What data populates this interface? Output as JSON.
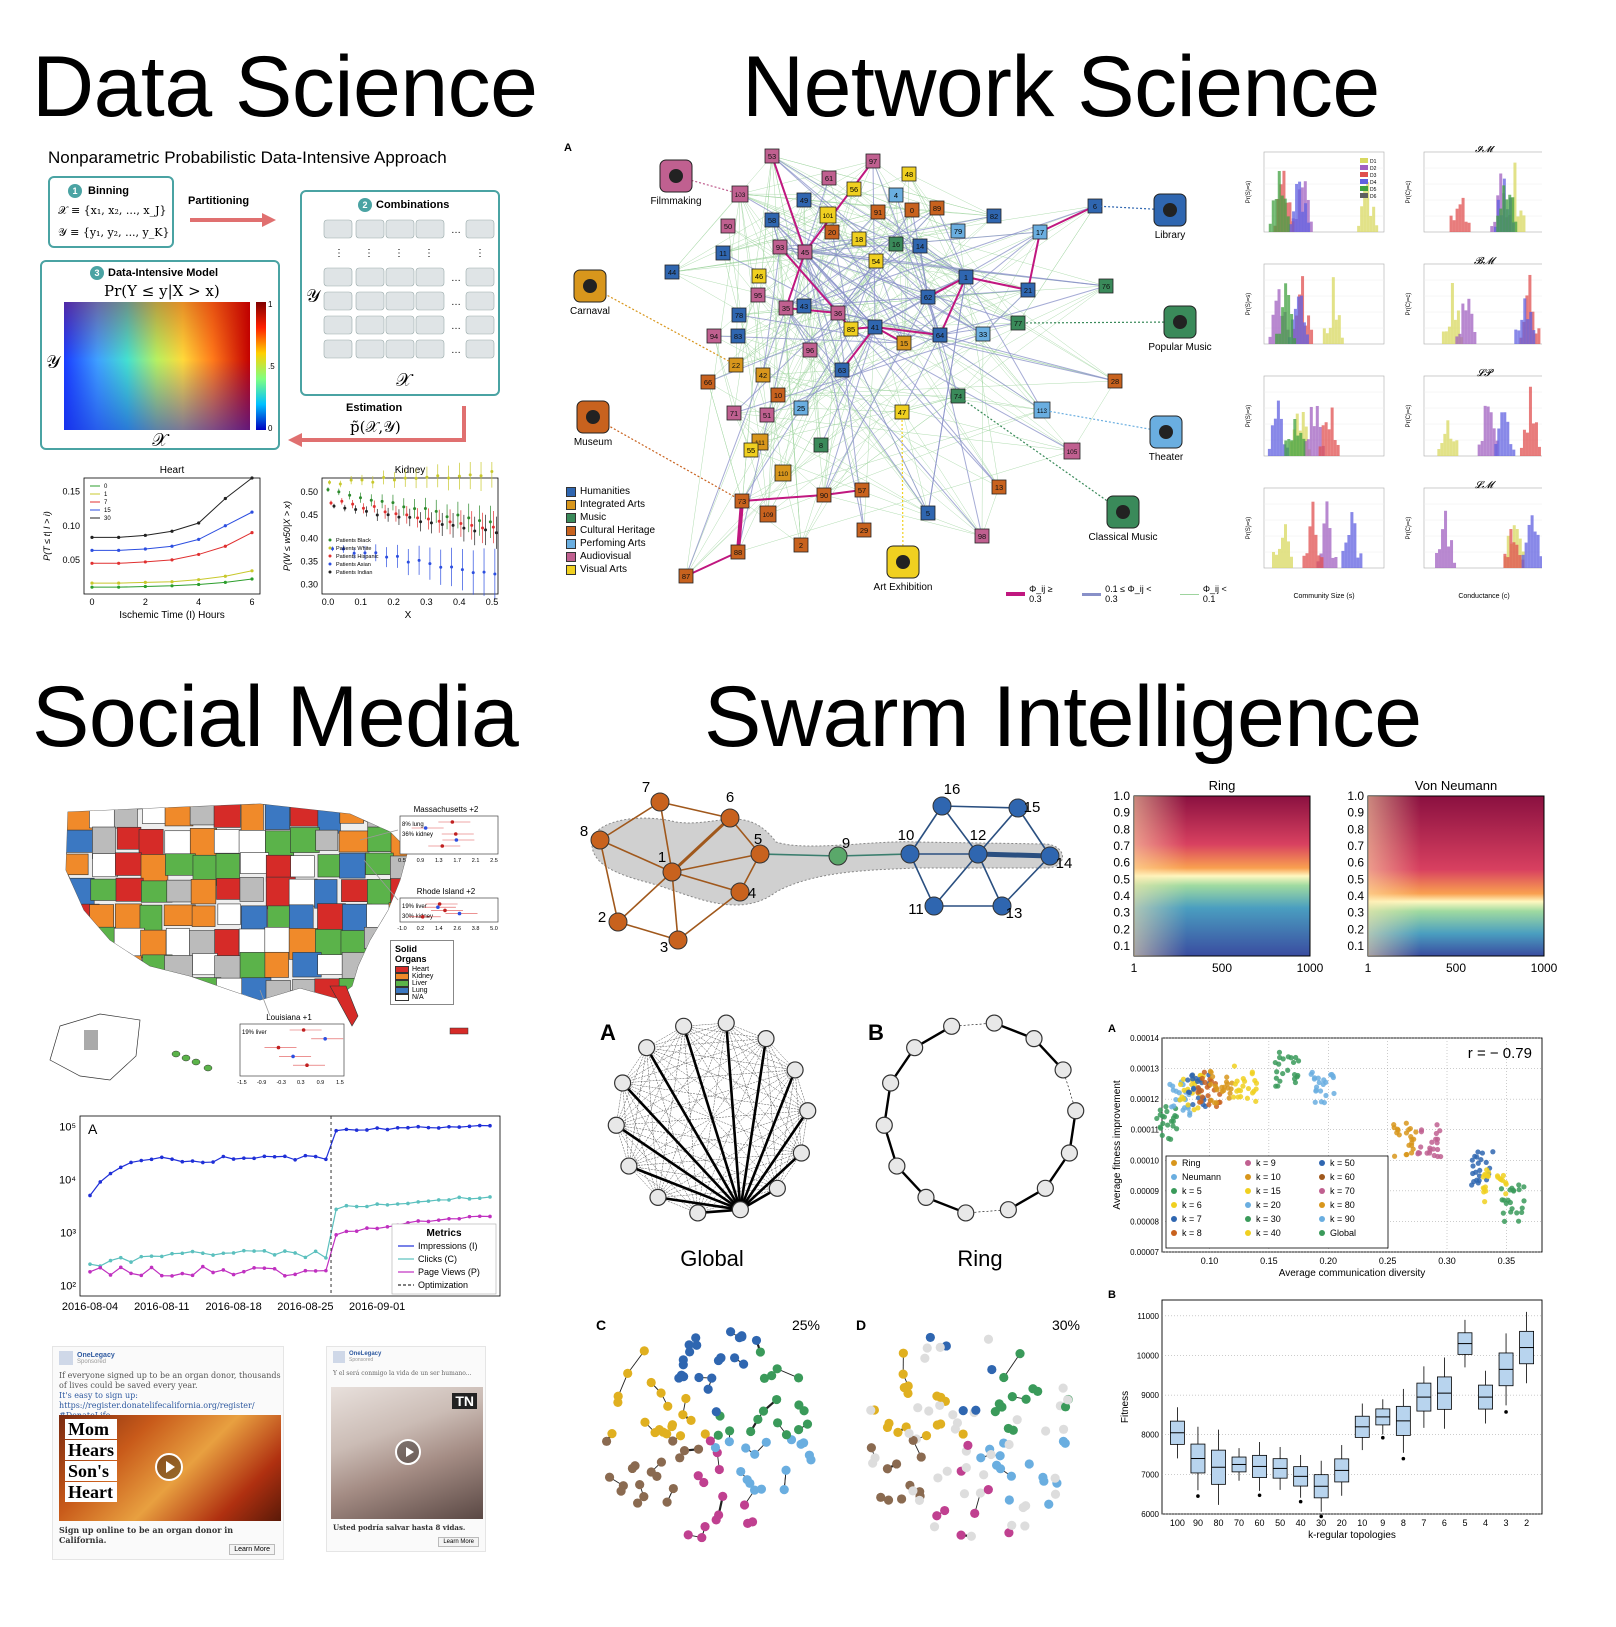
{
  "sections": {
    "data_science": "Data Science",
    "network_science": "Network Science",
    "social_media": "Social Media",
    "swarm_intelligence": "Swarm Intelligence"
  },
  "data_science": {
    "approach_title": "Nonparametric Probabilistic Data-Intensive Approach",
    "binning": {
      "num": "1",
      "label": "Binning",
      "x_def": "𝒳 ≡ {x₁, x₂, ..., x_J}",
      "y_def": "𝒴 ≡ {y₁, y₂, ..., y_K}"
    },
    "partitioning": "Partitioning",
    "combinations": {
      "num": "2",
      "label": "Combinations"
    },
    "model": {
      "num": "3",
      "label": "Data-Intensive Model",
      "formula": "Pr(Y ≤ y|X > x)",
      "xaxis": "𝒳",
      "yaxis": "𝒴",
      "cb_ticks": [
        "1",
        ".5",
        "0"
      ]
    },
    "estimation": {
      "label": "Estimation",
      "formula": "p̃(𝒳,𝒴)"
    },
    "matrix_axis_x": "𝒳",
    "matrix_axis_y": "𝒴",
    "heart_chart": {
      "title": "Heart",
      "xlabel": "Ischemic Time (I) Hours",
      "ylabel": "P(T ≤ t| I > i)",
      "legend": [
        "0",
        "1",
        "7",
        "15",
        "30"
      ],
      "yticks": [
        "0.15",
        "0.10",
        "0.05"
      ],
      "xticks": [
        "0",
        "2",
        "4",
        "6"
      ]
    },
    "kidney_chart": {
      "title": "Kidney",
      "xlabel": "X",
      "ylabel": "P(W ≤ w50|X > x)",
      "legend": [
        "Patients Black",
        "Patients White",
        "Patients Hispanic",
        "Patients Asian",
        "Patients Indian"
      ],
      "yticks": [
        "0.50",
        "0.45",
        "0.40",
        "0.35",
        "0.30"
      ],
      "xticks": [
        "0.0",
        "0.1",
        "0.2",
        "0.3",
        "0.4",
        "0.5"
      ]
    }
  },
  "network_science": {
    "panel_label": "A",
    "categories": [
      {
        "label": "Filmmaking",
        "icon": "film-camera-icon",
        "color": "#c06090"
      },
      {
        "label": "Carnaval",
        "icon": "carnival-mask-icon",
        "color": "#d8961c"
      },
      {
        "label": "Museum",
        "icon": "museum-icon",
        "color": "#c8621e"
      },
      {
        "label": "Library",
        "icon": "library-icon",
        "color": "#2f66b0"
      },
      {
        "label": "Popular Music",
        "icon": "guitar-icon",
        "color": "#3a8a5a"
      },
      {
        "label": "Theater",
        "icon": "theater-masks-icon",
        "color": "#6aaee0"
      },
      {
        "label": "Classical Music",
        "icon": "harp-icon",
        "color": "#3a8a5a"
      },
      {
        "label": "Art Exhibition",
        "icon": "palette-icon",
        "color": "#f0d020"
      }
    ],
    "legend": [
      {
        "label": "Humanities",
        "color": "#2f66b0"
      },
      {
        "label": "Integrated Arts",
        "color": "#d8961c"
      },
      {
        "label": "Music",
        "color": "#3a8a5a"
      },
      {
        "label": "Cultural Heritage",
        "color": "#c8621e"
      },
      {
        "label": "Perfoming Arts",
        "color": "#6aaee0"
      },
      {
        "label": "Audiovisual",
        "color": "#c06090"
      },
      {
        "label": "Visual Arts",
        "color": "#f0d020"
      }
    ],
    "edge_legend": [
      "Φ_ij ≥ 0.3",
      "0.1 ≤ Φ_ij < 0.3",
      "Φ_ij < 0.1"
    ],
    "side_charts": {
      "titles": [
        "𝓘𝓜",
        "𝓑𝓜",
        "𝓛𝓟",
        "𝓛𝓜"
      ],
      "xlabel_left": "Community Size (s)",
      "xlabel_right": "Conductance (c)",
      "ylabel_left": "Pr(S)=s)",
      "ylabel_right": "Pr(C)=c)",
      "legend": [
        "D1",
        "D2",
        "D3",
        "D4",
        "D5",
        "D6"
      ]
    }
  },
  "social_media": {
    "map_callouts": [
      {
        "title": "Massachusetts +2",
        "labels": [
          "8% lung",
          "36% kidney"
        ]
      },
      {
        "title": "Rhode Island +2",
        "labels": [
          "19% liver",
          "30% kidney"
        ]
      },
      {
        "title": "Louisiana +1",
        "labels": [
          "19% liver"
        ]
      }
    ],
    "organ_legend": {
      "title": "Solid Organs",
      "items": [
        {
          "label": "Heart",
          "color": "#d62b28"
        },
        {
          "label": "Kidney",
          "color": "#f08a2a"
        },
        {
          "label": "Liver",
          "color": "#5bb34a"
        },
        {
          "label": "Lung",
          "color": "#3b78c2"
        },
        {
          "label": "N/A",
          "color": "#ffffff"
        }
      ]
    },
    "metrics_chart": {
      "panel_label": "A",
      "legend_title": "Metrics",
      "legend": [
        "Impressions (I)",
        "Clicks (C)",
        "Page Views (P)",
        "Optimization"
      ],
      "xticks": [
        "2016-08-04",
        "2016-08-11",
        "2016-08-18",
        "2016-08-25",
        "2016-09-01"
      ],
      "yticks": [
        "10⁵",
        "10⁴",
        "10³",
        "10²"
      ]
    },
    "ads": [
      {
        "brand": "OneLegacy",
        "sponsored": "Sponsored",
        "body": "If everyone signed up to be an organ donor, thousands of lives could be saved every year.",
        "link": "It's easy to sign up: https://register.donatelifecalifornia.org/register/",
        "hashtag": "#DonateLife",
        "headline_words": [
          "Mom",
          "Hears",
          "Son's",
          "Heart"
        ],
        "caption": "Sign up online to be an organ donor in California.",
        "cta": "Learn More"
      },
      {
        "brand": "OneLegacy",
        "sponsored": "Sponsored",
        "body": "Y el será conmigo la vida de un ser humano...",
        "caption": "Usted podría salvar hasta 8 vidas.",
        "cta": "Learn More",
        "badge": "TN"
      }
    ]
  },
  "swarm": {
    "graph_labels": [
      "1",
      "2",
      "3",
      "4",
      "5",
      "6",
      "7",
      "8",
      "9",
      "10",
      "11",
      "12",
      "13",
      "14",
      "15",
      "16"
    ],
    "heatmaps": [
      {
        "title": "Ring",
        "xticks": [
          "1",
          "500",
          "1000"
        ],
        "yticks": [
          "1.0",
          "0.9",
          "0.8",
          "0.7",
          "0.6",
          "0.5",
          "0.4",
          "0.3",
          "0.2",
          "0.1"
        ]
      },
      {
        "title": "Von Neumann",
        "xticks": [
          "1",
          "500",
          "1000"
        ],
        "yticks": [
          "1.0",
          "0.9",
          "0.8",
          "0.7",
          "0.6",
          "0.5",
          "0.4",
          "0.3",
          "0.2",
          "0.1"
        ]
      }
    ],
    "topologies": [
      {
        "panel": "A",
        "label": "Global"
      },
      {
        "panel": "B",
        "label": "Ring"
      }
    ],
    "communities": [
      {
        "panel": "C",
        "percent": "25%"
      },
      {
        "panel": "D",
        "percent": "30%"
      }
    ],
    "scatter": {
      "panel": "A",
      "annotation": "r = − 0.79",
      "xlabel": "Average communication diversity",
      "ylabel": "Average fitness improvement",
      "xticks": [
        "0.10",
        "0.15",
        "0.20",
        "0.25",
        "0.30",
        "0.35"
      ],
      "yticks": [
        "0.00014",
        "0.00013",
        "0.00012",
        "0.00011",
        "0.00010",
        "0.00009",
        "0.00008",
        "0.00007"
      ],
      "legend": [
        "Ring",
        "Neumann",
        "k = 5",
        "k = 6",
        "k = 7",
        "k = 8",
        "k = 9",
        "k = 10",
        "k = 15",
        "k = 20",
        "k = 30",
        "k = 40",
        "k = 50",
        "k = 60",
        "k = 70",
        "k = 80",
        "k = 90",
        "Global"
      ]
    },
    "boxplot": {
      "panel": "B",
      "xlabel": "k-regular topologies",
      "ylabel": "Fitness",
      "xticks": [
        "100",
        "90",
        "80",
        "70",
        "60",
        "50",
        "40",
        "30",
        "20",
        "10",
        "9",
        "8",
        "7",
        "6",
        "5",
        "4",
        "3",
        "2"
      ],
      "yticks": [
        "11000",
        "10000",
        "9000",
        "8000",
        "7000",
        "6000"
      ],
      "medians": [
        8050,
        7400,
        7180,
        7250,
        7200,
        7150,
        6950,
        6700,
        7100,
        8200,
        8450,
        8350,
        8950,
        9050,
        10300,
        8950,
        9650,
        10200
      ]
    }
  }
}
